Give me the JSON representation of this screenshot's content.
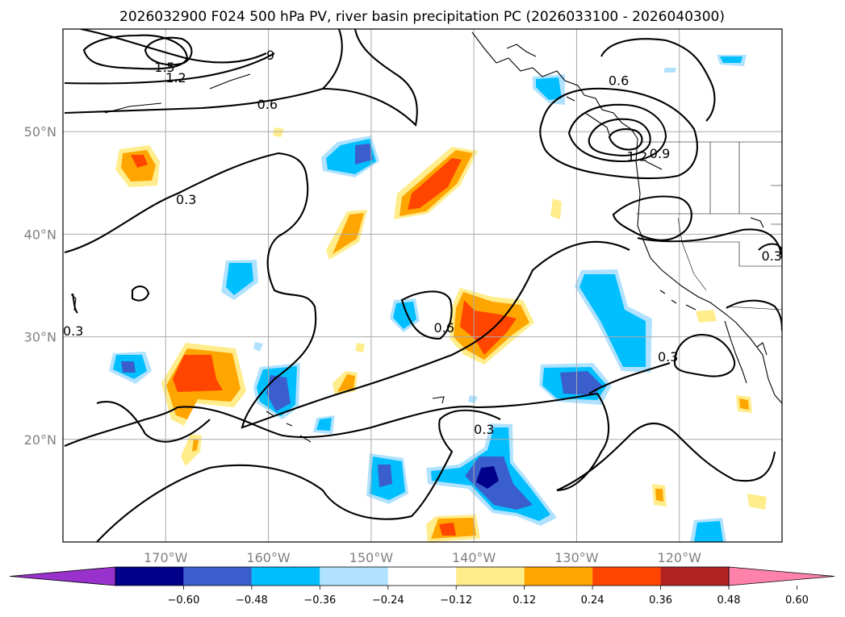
{
  "chart_data": {
    "type": "map",
    "title": "2026032900 F024 500 hPa PV, river basin precipitation PC (2026033100 - 2026040300)",
    "map_extent": {
      "lon_min": -180,
      "lon_max": -110,
      "lat_min": 10,
      "lat_max": 60
    },
    "gridlines": true,
    "lon_ticks": [
      {
        "lon": -170,
        "label": "170°W"
      },
      {
        "lon": -160,
        "label": "160°W"
      },
      {
        "lon": -150,
        "label": "150°W"
      },
      {
        "lon": -140,
        "label": "140°W"
      },
      {
        "lon": -130,
        "label": "130°W"
      },
      {
        "lon": -120,
        "label": "120°W"
      }
    ],
    "lat_ticks": [
      {
        "lat": 20,
        "label": "20°N"
      },
      {
        "lat": 30,
        "label": "30°N"
      },
      {
        "lat": 40,
        "label": "40°N"
      },
      {
        "lat": 50,
        "label": "50°N"
      }
    ],
    "colorbar": {
      "ticks": [
        "−0.60",
        "−0.48",
        "−0.36",
        "−0.24",
        "−0.12",
        "0.12",
        "0.24",
        "0.36",
        "0.48",
        "0.60"
      ],
      "colors": [
        "#9932cc",
        "#00008b",
        "#3a5fcd",
        "#00bfff",
        "#b0e2ff",
        "#ffffff",
        "#ffec8b",
        "#ffa500",
        "#ff4500",
        "#b22222",
        "#ff82ab"
      ],
      "extend": "both"
    },
    "contour_labels": [
      {
        "text": "1.5",
        "lon": -170.1,
        "lat": 56.3
      },
      {
        "text": "1.2",
        "lon": -169.0,
        "lat": 55.3
      },
      {
        "text": ".9",
        "lon": -160.0,
        "lat": 57.5
      },
      {
        "text": "0.6",
        "lon": -160.1,
        "lat": 52.7
      },
      {
        "text": "0.3",
        "lon": -168.0,
        "lat": 43.4
      },
      {
        "text": "0.3",
        "lon": -179.0,
        "lat": 30.6
      },
      {
        "text": "0.6",
        "lon": -142.9,
        "lat": 30.9
      },
      {
        "text": "0.3",
        "lon": -139.0,
        "lat": 21.0
      },
      {
        "text": "0.6",
        "lon": -125.9,
        "lat": 55.0
      },
      {
        "text": "1.2",
        "lon": -124.1,
        "lat": 47.6
      },
      {
        "text": "0.9",
        "lon": -121.9,
        "lat": 47.9
      },
      {
        "text": "0.3",
        "lon": -111.0,
        "lat": 37.9
      },
      {
        "text": "0.3",
        "lon": -121.1,
        "lat": 28.1
      }
    ]
  }
}
